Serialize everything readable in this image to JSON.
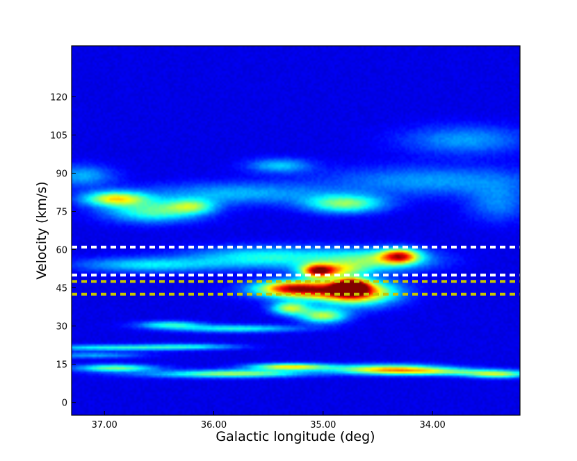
{
  "chart_data": {
    "type": "heatmap",
    "title": "",
    "xlabel": "Galactic longitude (deg)",
    "ylabel": "Velocity (km/s)",
    "xlim": [
      37.3,
      33.2
    ],
    "ylim": [
      -5,
      140
    ],
    "x_ticks": [
      {
        "value": 37.0,
        "label": "37.00"
      },
      {
        "value": 36.0,
        "label": "36.00"
      },
      {
        "value": 35.0,
        "label": "35.00"
      },
      {
        "value": 34.0,
        "label": "34.00"
      }
    ],
    "y_ticks": [
      {
        "value": 0,
        "label": "0"
      },
      {
        "value": 15,
        "label": "15"
      },
      {
        "value": 30,
        "label": "30"
      },
      {
        "value": 45,
        "label": "45"
      },
      {
        "value": 60,
        "label": "60"
      },
      {
        "value": 75,
        "label": "75"
      },
      {
        "value": 90,
        "label": "90"
      },
      {
        "value": 105,
        "label": "105"
      },
      {
        "value": 120,
        "label": "120"
      }
    ],
    "colormap": "jet",
    "background_color": "#00008f",
    "blobs": [
      {
        "l": 34.75,
        "v": 45.5,
        "sl": 0.1,
        "sv": 2.0,
        "a": 1.0
      },
      {
        "l": 34.7,
        "v": 43.0,
        "sl": 0.25,
        "sv": 3.5,
        "a": 0.6
      },
      {
        "l": 35.1,
        "v": 44.0,
        "sl": 0.35,
        "sv": 2.5,
        "a": 0.5
      },
      {
        "l": 35.3,
        "v": 45.0,
        "sl": 0.2,
        "sv": 2.0,
        "a": 0.45
      },
      {
        "l": 35.05,
        "v": 51.5,
        "sl": 0.1,
        "sv": 1.8,
        "a": 0.6
      },
      {
        "l": 34.9,
        "v": 52.0,
        "sl": 0.2,
        "sv": 2.0,
        "a": 0.4
      },
      {
        "l": 34.3,
        "v": 57.5,
        "sl": 0.12,
        "sv": 2.0,
        "a": 0.6
      },
      {
        "l": 34.5,
        "v": 56.0,
        "sl": 0.35,
        "sv": 3.0,
        "a": 0.35
      },
      {
        "l": 35.5,
        "v": 57.0,
        "sl": 0.5,
        "sv": 3.0,
        "a": 0.3
      },
      {
        "l": 36.6,
        "v": 54.0,
        "sl": 0.45,
        "sv": 2.0,
        "a": 0.25
      },
      {
        "l": 35.3,
        "v": 37.0,
        "sl": 0.12,
        "sv": 1.8,
        "a": 0.45
      },
      {
        "l": 35.0,
        "v": 34.0,
        "sl": 0.15,
        "sv": 2.0,
        "a": 0.45
      },
      {
        "l": 36.4,
        "v": 30.5,
        "sl": 0.2,
        "sv": 1.0,
        "a": 0.3
      },
      {
        "l": 35.8,
        "v": 29.0,
        "sl": 0.4,
        "sv": 1.0,
        "a": 0.3
      },
      {
        "l": 36.9,
        "v": 21.5,
        "sl": 0.5,
        "sv": 0.8,
        "a": 0.3
      },
      {
        "l": 36.2,
        "v": 22.0,
        "sl": 0.3,
        "sv": 0.8,
        "a": 0.2
      },
      {
        "l": 37.1,
        "v": 18.5,
        "sl": 0.3,
        "sv": 0.8,
        "a": 0.2
      },
      {
        "l": 36.9,
        "v": 13.5,
        "sl": 0.25,
        "sv": 1.0,
        "a": 0.4
      },
      {
        "l": 35.3,
        "v": 14.0,
        "sl": 0.25,
        "sv": 0.9,
        "a": 0.55
      },
      {
        "l": 35.7,
        "v": 11.5,
        "sl": 0.4,
        "sv": 1.0,
        "a": 0.3
      },
      {
        "l": 34.4,
        "v": 13.0,
        "sl": 0.35,
        "sv": 1.3,
        "a": 0.55
      },
      {
        "l": 33.9,
        "v": 12.0,
        "sl": 0.4,
        "sv": 1.0,
        "a": 0.3
      },
      {
        "l": 33.4,
        "v": 11.0,
        "sl": 0.2,
        "sv": 1.0,
        "a": 0.4
      },
      {
        "l": 36.1,
        "v": 11.0,
        "sl": 0.5,
        "sv": 1.0,
        "a": 0.2
      },
      {
        "l": 36.9,
        "v": 80.0,
        "sl": 0.2,
        "sv": 2.0,
        "a": 0.5
      },
      {
        "l": 36.55,
        "v": 75.0,
        "sl": 0.3,
        "sv": 3.0,
        "a": 0.35
      },
      {
        "l": 36.2,
        "v": 77.0,
        "sl": 0.15,
        "sv": 2.0,
        "a": 0.3
      },
      {
        "l": 34.8,
        "v": 78.0,
        "sl": 0.25,
        "sv": 2.5,
        "a": 0.4
      },
      {
        "l": 35.8,
        "v": 82.0,
        "sl": 0.6,
        "sv": 3.0,
        "a": 0.2
      },
      {
        "l": 34.0,
        "v": 87.0,
        "sl": 0.7,
        "sv": 4.0,
        "a": 0.18
      },
      {
        "l": 33.7,
        "v": 103.0,
        "sl": 0.4,
        "sv": 4.0,
        "a": 0.18
      },
      {
        "l": 35.4,
        "v": 93.0,
        "sl": 0.2,
        "sv": 2.0,
        "a": 0.22
      },
      {
        "l": 37.2,
        "v": 89.0,
        "sl": 0.2,
        "sv": 3.0,
        "a": 0.2
      },
      {
        "l": 33.4,
        "v": 78.0,
        "sl": 0.2,
        "sv": 5.0,
        "a": 0.15
      }
    ]
  },
  "overlays": {
    "dashed_lines": [
      {
        "v": 61.0,
        "color": "#ffffff"
      },
      {
        "v": 50.0,
        "color": "#ffffff"
      },
      {
        "v": 47.5,
        "color": "#c8c800"
      },
      {
        "v": 42.5,
        "color": "#c8c800"
      }
    ]
  }
}
